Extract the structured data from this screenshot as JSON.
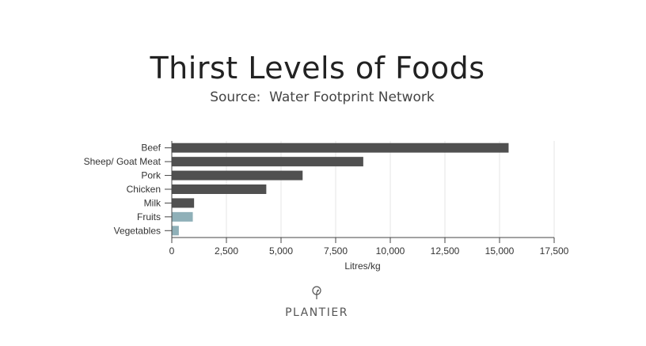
{
  "header": {
    "title": "Thirst Levels of Foods",
    "subtitle": "Source:  Water Footprint Network"
  },
  "logo": {
    "text": "PLANTIER",
    "icon": "plant-sprout-icon"
  },
  "colors": {
    "primary_bar": "#505050",
    "highlight_bar": "#8fb0b8",
    "grid": "#e6e6e6",
    "axis": "#444444"
  },
  "chart_data": {
    "type": "bar",
    "orientation": "horizontal",
    "categories": [
      "Beef",
      "Sheep/ Goat Meat",
      "Pork",
      "Chicken",
      "Milk",
      "Fruits",
      "Vegetables"
    ],
    "values": [
      15415,
      8763,
      5988,
      4325,
      1020,
      962,
      322
    ],
    "highlight": [
      false,
      false,
      false,
      false,
      false,
      true,
      true
    ],
    "xlabel": "Litres/kg",
    "ylabel": "",
    "xlim": [
      0,
      17500
    ],
    "xticks": [
      0,
      2500,
      5000,
      7500,
      10000,
      12500,
      15000,
      17500
    ],
    "xtick_labels": [
      "0",
      "2,500",
      "5,000",
      "7,500",
      "10,000",
      "12,500",
      "15,000",
      "17,500"
    ],
    "grid": true,
    "legend": "none"
  }
}
